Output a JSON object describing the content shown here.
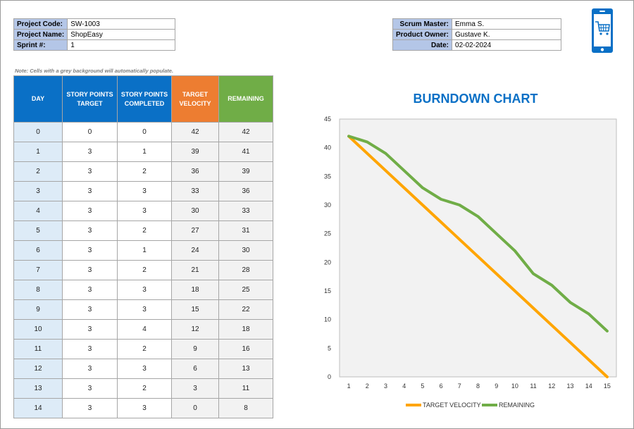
{
  "project": {
    "rows": [
      {
        "label": "Project Code:",
        "value": "SW-1003"
      },
      {
        "label": "Project Name:",
        "value": "ShopEasy"
      },
      {
        "label": "Sprint #:",
        "value": "1"
      }
    ]
  },
  "team": {
    "rows": [
      {
        "label": "Scrum Master:",
        "value": "Emma S."
      },
      {
        "label": "Product Owner:",
        "value": "Gustave K."
      },
      {
        "label": "Date:",
        "value": "02-02-2024"
      }
    ]
  },
  "note": "Note: Cells with a grey background will automatically populate.",
  "table": {
    "headers": {
      "day": "DAY",
      "target": "STORY POINTS TARGET",
      "completed": "STORY POINTS COMPLETED",
      "velocity": "TARGET VELOCITY",
      "remaining": "REMAINING"
    },
    "rows": [
      {
        "day": "0",
        "target": "0",
        "completed": "0",
        "velocity": "42",
        "remaining": "42"
      },
      {
        "day": "1",
        "target": "3",
        "completed": "1",
        "velocity": "39",
        "remaining": "41"
      },
      {
        "day": "2",
        "target": "3",
        "completed": "2",
        "velocity": "36",
        "remaining": "39"
      },
      {
        "day": "3",
        "target": "3",
        "completed": "3",
        "velocity": "33",
        "remaining": "36"
      },
      {
        "day": "4",
        "target": "3",
        "completed": "3",
        "velocity": "30",
        "remaining": "33"
      },
      {
        "day": "5",
        "target": "3",
        "completed": "2",
        "velocity": "27",
        "remaining": "31"
      },
      {
        "day": "6",
        "target": "3",
        "completed": "1",
        "velocity": "24",
        "remaining": "30"
      },
      {
        "day": "7",
        "target": "3",
        "completed": "2",
        "velocity": "21",
        "remaining": "28"
      },
      {
        "day": "8",
        "target": "3",
        "completed": "3",
        "velocity": "18",
        "remaining": "25"
      },
      {
        "day": "9",
        "target": "3",
        "completed": "3",
        "velocity": "15",
        "remaining": "22"
      },
      {
        "day": "10",
        "target": "3",
        "completed": "4",
        "velocity": "12",
        "remaining": "18"
      },
      {
        "day": "11",
        "target": "3",
        "completed": "2",
        "velocity": "9",
        "remaining": "16"
      },
      {
        "day": "12",
        "target": "3",
        "completed": "3",
        "velocity": "6",
        "remaining": "13"
      },
      {
        "day": "13",
        "target": "3",
        "completed": "2",
        "velocity": "3",
        "remaining": "11"
      },
      {
        "day": "14",
        "target": "3",
        "completed": "3",
        "velocity": "0",
        "remaining": "8"
      }
    ]
  },
  "icon": "smartphone-shopping-cart-icon",
  "colors": {
    "header_blue": "#0a70c6",
    "velocity_orange": "#ed7d31",
    "remaining_green": "#70ad47",
    "target_line": "#ffa500",
    "remaining_line": "#70ad47"
  },
  "chart_data": {
    "type": "line",
    "title": "BURNDOWN CHART",
    "x": [
      1,
      2,
      3,
      4,
      5,
      6,
      7,
      8,
      9,
      10,
      11,
      12,
      13,
      14,
      15
    ],
    "series": [
      {
        "name": "TARGET VELOCITY",
        "values": [
          42,
          39,
          36,
          33,
          30,
          27,
          24,
          21,
          18,
          15,
          12,
          9,
          6,
          3,
          0
        ]
      },
      {
        "name": "REMAINING",
        "values": [
          42,
          41,
          39,
          36,
          33,
          31,
          30,
          28,
          25,
          22,
          18,
          16,
          13,
          11,
          8
        ]
      }
    ],
    "ylim": [
      0,
      45
    ],
    "yticks": [
      0,
      5,
      10,
      15,
      20,
      25,
      30,
      35,
      40,
      45
    ],
    "grid": false,
    "legend": "bottom"
  }
}
